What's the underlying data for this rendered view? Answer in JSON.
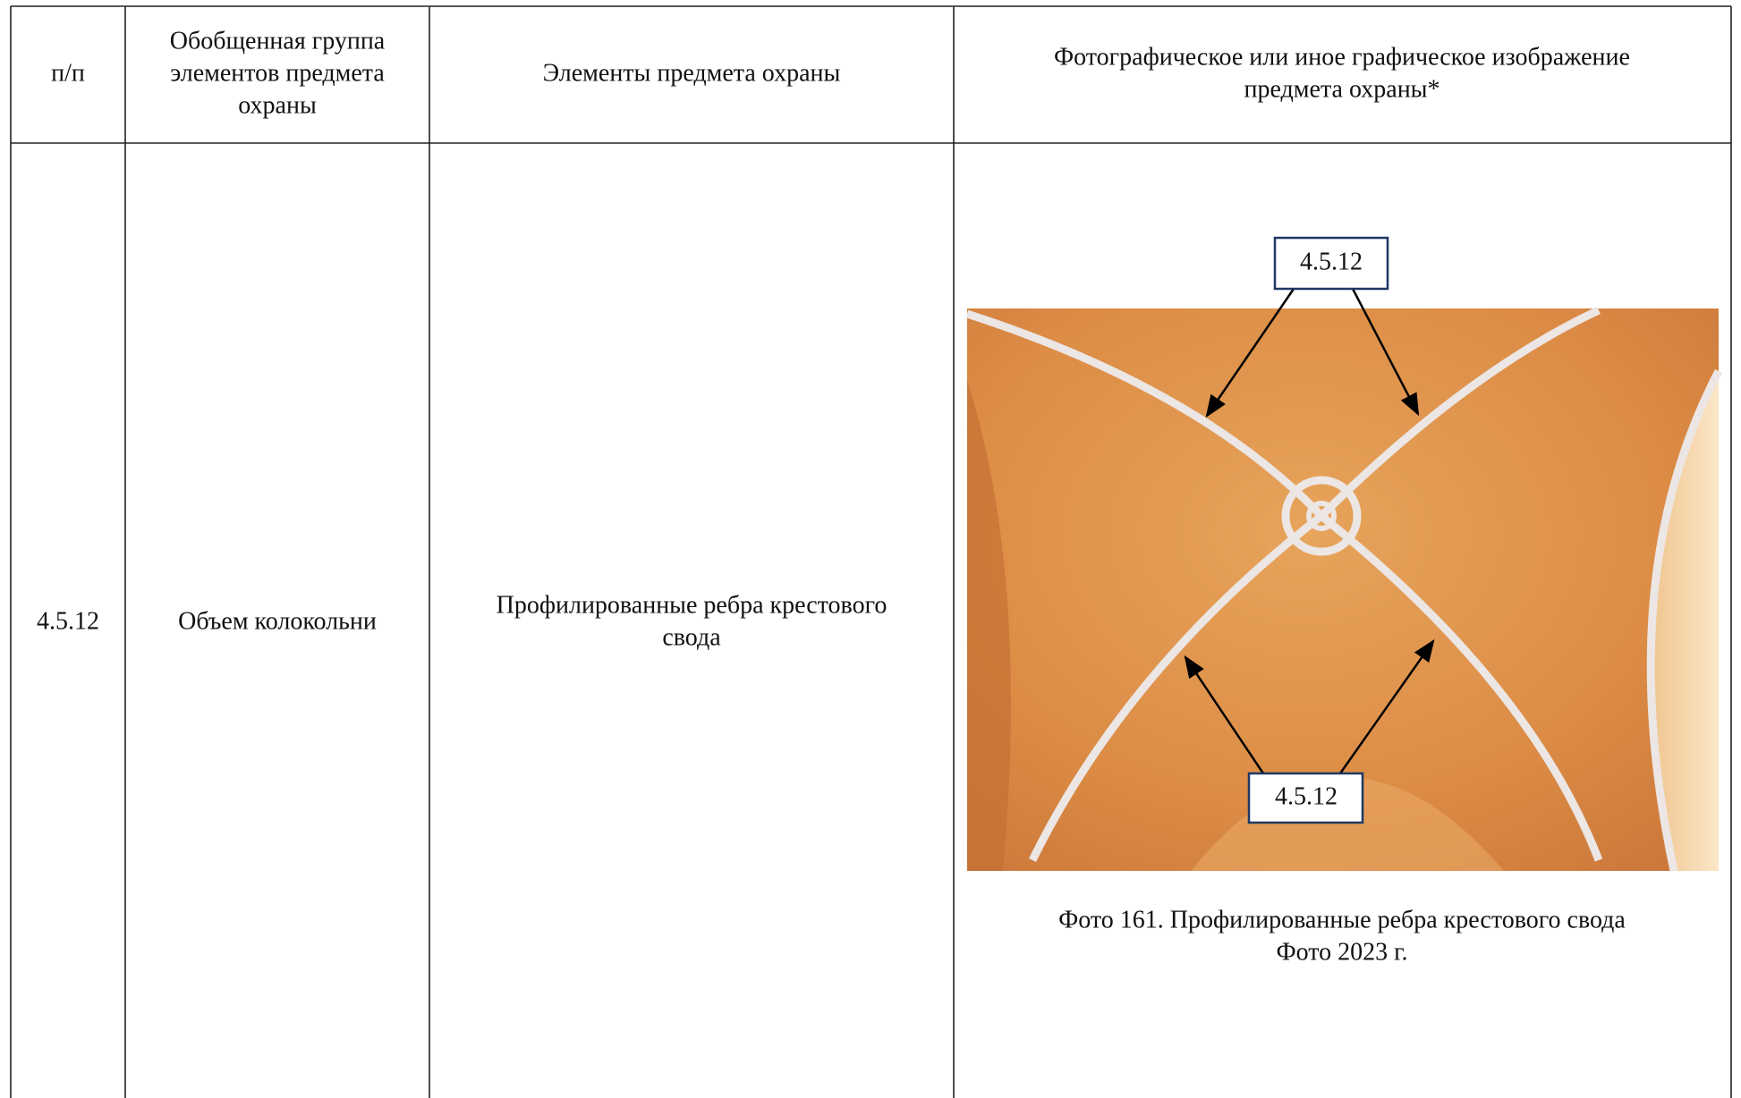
{
  "table": {
    "header": [
      [
        "п/п"
      ],
      [
        "Обобщенная группа",
        "элементов предмета",
        "охраны"
      ],
      [
        "Элементы предмета охраны"
      ],
      [
        "Фотографическое или иное графическое изображение",
        "предмета охраны*"
      ]
    ],
    "rows": [
      [
        [
          "4.5.12"
        ],
        [
          "Объем колокольни"
        ],
        [
          "Профилированные ребра крестового",
          "свода"
        ]
      ]
    ]
  },
  "photo": {
    "labels": [
      "4.5.12",
      "4.5.12"
    ],
    "caption": [
      "Фото 161. Профилированные ребра крестового свода",
      "Фото 2023 г."
    ]
  }
}
